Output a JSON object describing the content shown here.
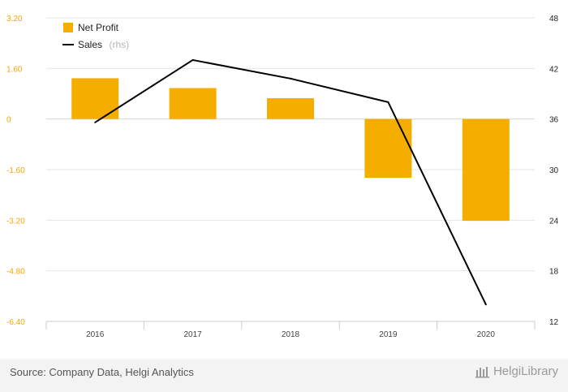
{
  "chart_data": {
    "type": "bar",
    "categories": [
      "2016",
      "2017",
      "2018",
      "2019",
      "2020"
    ],
    "series": [
      {
        "name": "Net Profit",
        "kind": "bar",
        "axis": "left",
        "color": "#f5ae00",
        "values": [
          1.29,
          0.98,
          0.66,
          -1.86,
          -3.22
        ]
      },
      {
        "name": "Sales",
        "name_suffix": "(rhs)",
        "kind": "line",
        "axis": "right",
        "color": "#000000",
        "values": [
          35.6,
          43.0,
          40.8,
          38.0,
          14.0
        ]
      }
    ],
    "y_left": {
      "min": -6.4,
      "max": 3.2,
      "ticks": [
        "3.20",
        "1.60",
        "0",
        "-1.60",
        "-3.20",
        "-4.80",
        "-6.40"
      ]
    },
    "y_right": {
      "min": 12,
      "max": 48,
      "ticks": [
        "48",
        "42",
        "36",
        "30",
        "24",
        "18",
        "12"
      ]
    },
    "grid": true,
    "legend_position": "top-left"
  },
  "footer": {
    "source": "Source: Company Data, Helgi Analytics",
    "brand": "HelgiLibrary"
  }
}
